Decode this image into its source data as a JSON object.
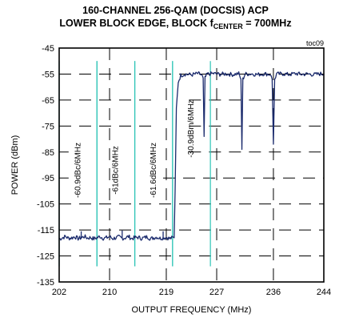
{
  "chart_data": {
    "type": "line",
    "title_line1": "160-CHANNEL  256-QAM  (DOCSIS) ACP",
    "title_line2_prefix": "LOWER BLOCK EDGE, BLOCK f",
    "title_line2_sub": "CENTER",
    "title_line2_suffix": " = 700MHz",
    "figure_code": "toc09",
    "xlabel": "OUTPUT FREQUENCY (MHz)",
    "ylabel": "POWER (dBm)",
    "xlim": [
      202,
      244
    ],
    "ylim": [
      -135,
      -45
    ],
    "x_ticks": [
      202,
      210,
      219,
      227,
      236,
      244
    ],
    "y_ticks": [
      -45,
      -55,
      -65,
      -75,
      -85,
      -95,
      -105,
      -115,
      -125,
      -135
    ],
    "grid": true,
    "band_markers": [
      {
        "label": "-60.9dBc/6MHz",
        "x_start": 202.0,
        "x_end": 208.0
      },
      {
        "label": "-61dBc/6MHz",
        "x_start": 208.0,
        "x_end": 214.0
      },
      {
        "label": "-61.6dBc/6MHz",
        "x_start": 214.0,
        "x_end": 220.0
      },
      {
        "label": "-30.9dBm/6MHz",
        "x_start": 220.0,
        "x_end": 226.0
      }
    ],
    "series": [
      {
        "points": [
          [
            202.0,
            -118.5
          ],
          [
            202.5,
            -118.0
          ],
          [
            203.0,
            -117.5
          ],
          [
            203.5,
            -118.2
          ],
          [
            204.0,
            -118.0
          ],
          [
            204.5,
            -117.6
          ],
          [
            205.0,
            -118.3
          ],
          [
            205.5,
            -118.0
          ],
          [
            206.0,
            -117.5
          ],
          [
            206.5,
            -118.1
          ],
          [
            207.0,
            -117.9
          ],
          [
            207.5,
            -118.4
          ],
          [
            208.0,
            -118.0
          ],
          [
            208.5,
            -117.5
          ],
          [
            209.0,
            -118.2
          ],
          [
            209.5,
            -118.0
          ],
          [
            210.0,
            -117.6
          ],
          [
            210.5,
            -118.3
          ],
          [
            211.0,
            -118.0
          ],
          [
            211.5,
            -117.7
          ],
          [
            212.0,
            -118.2
          ],
          [
            212.5,
            -118.0
          ],
          [
            213.0,
            -117.5
          ],
          [
            213.5,
            -118.3
          ],
          [
            214.0,
            -118.0
          ],
          [
            214.5,
            -117.8
          ],
          [
            215.0,
            -118.2
          ],
          [
            215.5,
            -118.0
          ],
          [
            216.0,
            -117.6
          ],
          [
            216.5,
            -118.4
          ],
          [
            217.0,
            -118.0
          ],
          [
            217.5,
            -117.7
          ],
          [
            218.0,
            -118.2
          ],
          [
            218.5,
            -118.0
          ],
          [
            219.0,
            -117.8
          ],
          [
            219.5,
            -118.3
          ],
          [
            220.0,
            -118.0
          ],
          [
            220.25,
            -118.0
          ],
          [
            220.4,
            -100.0
          ],
          [
            220.6,
            -68.0
          ],
          [
            220.9,
            -58.0
          ],
          [
            221.3,
            -55.5
          ],
          [
            222.0,
            -55.0
          ],
          [
            223.0,
            -55.3
          ],
          [
            224.0,
            -54.8
          ],
          [
            224.5,
            -55.2
          ],
          [
            224.85,
            -56.5
          ],
          [
            225.0,
            -79.0
          ],
          [
            225.15,
            -56.5
          ],
          [
            225.5,
            -55.0
          ],
          [
            226.5,
            -54.8
          ],
          [
            227.5,
            -55.1
          ],
          [
            228.5,
            -54.9
          ],
          [
            229.5,
            -55.2
          ],
          [
            230.5,
            -54.8
          ],
          [
            230.85,
            -57.0
          ],
          [
            231.0,
            -84.0
          ],
          [
            231.15,
            -57.0
          ],
          [
            231.5,
            -55.0
          ],
          [
            232.5,
            -54.9
          ],
          [
            233.5,
            -55.2
          ],
          [
            234.5,
            -54.9
          ],
          [
            235.5,
            -55.1
          ],
          [
            235.8,
            -57.0
          ],
          [
            236.0,
            -82.0
          ],
          [
            236.2,
            -57.0
          ],
          [
            236.5,
            -55.0
          ],
          [
            237.5,
            -54.9
          ],
          [
            238.5,
            -55.2
          ],
          [
            239.5,
            -54.8
          ],
          [
            240.5,
            -55.1
          ],
          [
            241.5,
            -55.0
          ],
          [
            242.5,
            -55.2
          ],
          [
            243.5,
            -54.9
          ],
          [
            244.0,
            -55.0
          ]
        ]
      }
    ],
    "colors": {
      "trace": "#1a2a6c",
      "markers": "#2ec4b6",
      "grid": "#000000"
    }
  }
}
